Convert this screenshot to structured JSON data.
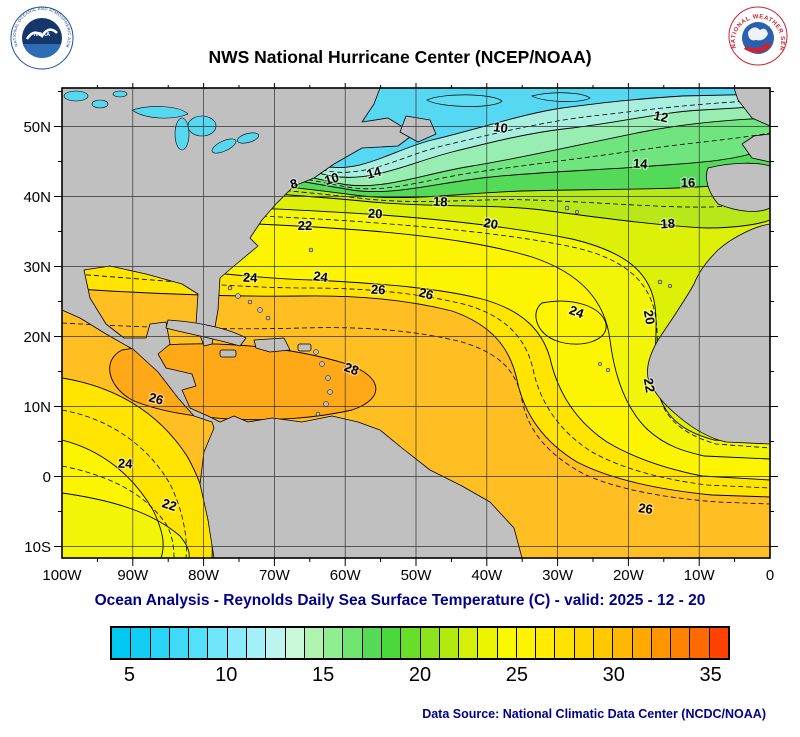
{
  "header": {
    "title": "NWS National Hurricane Center (NCEP/NOAA)"
  },
  "logos": {
    "noaa_ring_text": "NATIONAL OCEANIC AND ATMOSPHERIC ADMINISTRATION - U.S. DEPARTMENT OF COMMERCE",
    "nws_ring_text": "NATIONAL WEATHER SERVICE",
    "noaa_center_label": "NOAA"
  },
  "caption": "Ocean Analysis - Reynolds Daily Sea Surface Temperature (C) - valid: 2025 - 12 - 20",
  "datasource": "Data Source: National Climatic Data Center (NCDC/NOAA)",
  "chart_data": {
    "type": "heatmap",
    "title": "NWS National Hurricane Center (NCEP/NOAA)",
    "subtitle": "Ocean Analysis - Reynolds Daily Sea Surface Temperature (C) - valid: 2025 - 12 - 20",
    "unit": "C",
    "x_ticks": [
      "100W",
      "90W",
      "80W",
      "70W",
      "60W",
      "50W",
      "40W",
      "30W",
      "20W",
      "10W",
      "0"
    ],
    "y_ticks": [
      "50N",
      "40N",
      "30N",
      "20N",
      "10N",
      "0",
      "10S"
    ],
    "grid": true,
    "colorbar": {
      "min": 4,
      "max": 36,
      "ticks": [
        5,
        10,
        15,
        20,
        25,
        30,
        35
      ],
      "colors": [
        "#00C8F0",
        "#12CEF4",
        "#28D4F8",
        "#3EDAF8",
        "#55E0FA",
        "#6FE6FA",
        "#8AECFA",
        "#A4F0F8",
        "#BEF4F0",
        "#C8F8D8",
        "#AEF4AE",
        "#8FEE8F",
        "#6FE46F",
        "#55DA55",
        "#4AD83C",
        "#66DE2A",
        "#8CE41C",
        "#B2EA10",
        "#D4F008",
        "#ECF400",
        "#FAF800",
        "#FFF400",
        "#FFEC00",
        "#FFE200",
        "#FFD600",
        "#FFC800",
        "#FFB800",
        "#FFA800",
        "#FF9600",
        "#FF8200",
        "#FF6A00",
        "#FF4200"
      ]
    },
    "isotherms_shown": [
      8,
      10,
      12,
      14,
      16,
      18,
      20,
      22,
      24,
      26,
      28
    ],
    "contour_labels": [
      {
        "value": 8,
        "x": 295,
        "y": 106,
        "rot": -15
      },
      {
        "value": 10,
        "x": 333,
        "y": 101,
        "rot": -18
      },
      {
        "value": 14,
        "x": 375,
        "y": 95,
        "rot": -15
      },
      {
        "value": 10,
        "x": 500,
        "y": 50,
        "rot": 8
      },
      {
        "value": 12,
        "x": 660,
        "y": 39,
        "rot": 12
      },
      {
        "value": 14,
        "x": 640,
        "y": 86,
        "rot": 4
      },
      {
        "value": 16,
        "x": 688,
        "y": 105,
        "rot": 0
      },
      {
        "value": 18,
        "x": 440,
        "y": 124,
        "rot": 4
      },
      {
        "value": 20,
        "x": 375,
        "y": 136,
        "rot": 3
      },
      {
        "value": 22,
        "x": 305,
        "y": 148,
        "rot": 0
      },
      {
        "value": 20,
        "x": 490,
        "y": 146,
        "rot": 10
      },
      {
        "value": 18,
        "x": 668,
        "y": 146,
        "rot": -3
      },
      {
        "value": 24,
        "x": 250,
        "y": 200,
        "rot": 3
      },
      {
        "value": 24,
        "x": 320,
        "y": 199,
        "rot": 8
      },
      {
        "value": 26,
        "x": 378,
        "y": 212,
        "rot": 3
      },
      {
        "value": 26,
        "x": 425,
        "y": 216,
        "rot": 15
      },
      {
        "value": 24,
        "x": 575,
        "y": 234,
        "rot": 20
      },
      {
        "value": 20,
        "x": 645,
        "y": 236,
        "rot": 80
      },
      {
        "value": 28,
        "x": 350,
        "y": 291,
        "rot": 20
      },
      {
        "value": 26,
        "x": 155,
        "y": 321,
        "rot": 15
      },
      {
        "value": 22,
        "x": 645,
        "y": 304,
        "rot": 80
      },
      {
        "value": 24,
        "x": 125,
        "y": 386,
        "rot": 3
      },
      {
        "value": 22,
        "x": 168,
        "y": 427,
        "rot": 18
      },
      {
        "value": 26,
        "x": 645,
        "y": 431,
        "rot": 8
      }
    ]
  }
}
